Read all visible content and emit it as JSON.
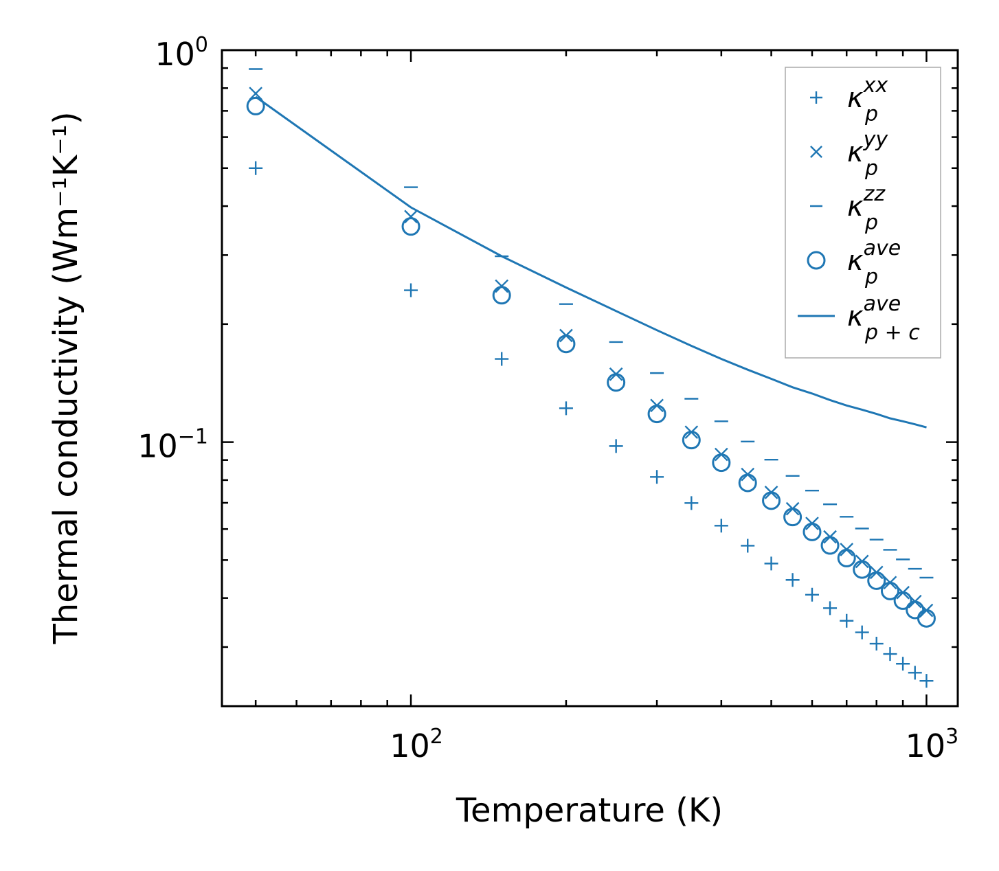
{
  "chart_data": {
    "type": "scatter",
    "title": "",
    "xlabel": "Temperature (K)",
    "ylabel": "Thermal conductivity (Wm⁻¹K⁻¹)",
    "xscale": "log",
    "yscale": "log",
    "xlim": [
      43,
      1150
    ],
    "ylim": [
      0.0212,
      1.0
    ],
    "x_ticks": [
      {
        "value": 100,
        "base": "10",
        "exp": "2"
      },
      {
        "value": 1000,
        "base": "10",
        "exp": "3"
      }
    ],
    "y_ticks": [
      {
        "value": 1.0,
        "base": "10",
        "exp": "0"
      },
      {
        "value": 0.1,
        "base": "10",
        "exp": "−1"
      }
    ],
    "color": "#1f77b4",
    "legend_position": "top-right",
    "x": [
      50,
      100,
      150,
      200,
      250,
      300,
      350,
      400,
      450,
      500,
      550,
      600,
      650,
      700,
      750,
      800,
      850,
      900,
      950,
      1000
    ],
    "series": [
      {
        "name": "κ_p^xx",
        "sym": "κ",
        "sub": "p",
        "sup": "xx",
        "marker": "plus",
        "values": [
          0.5,
          0.244,
          0.163,
          0.122,
          0.0977,
          0.0815,
          0.0699,
          0.0612,
          0.0544,
          0.049,
          0.0445,
          0.0408,
          0.0377,
          0.035,
          0.0327,
          0.0306,
          0.0288,
          0.0272,
          0.0258,
          0.0246
        ]
      },
      {
        "name": "κ_p^yy",
        "sym": "κ",
        "sub": "p",
        "sup": "yy",
        "marker": "x",
        "values": [
          0.775,
          0.376,
          0.25,
          0.187,
          0.149,
          0.124,
          0.106,
          0.093,
          0.0827,
          0.0744,
          0.0676,
          0.062,
          0.0573,
          0.0532,
          0.0496,
          0.0465,
          0.0438,
          0.0413,
          0.0392,
          0.0372
        ]
      },
      {
        "name": "κ_p^zz",
        "sym": "κ",
        "sub": "p",
        "sup": "zz",
        "marker": "hline",
        "values": [
          0.895,
          0.447,
          0.298,
          0.225,
          0.18,
          0.15,
          0.129,
          0.113,
          0.1003,
          0.0902,
          0.082,
          0.0752,
          0.0694,
          0.0645,
          0.0602,
          0.0564,
          0.0531,
          0.0502,
          0.0475,
          0.0451
        ]
      },
      {
        "name": "κ_p^ave",
        "sym": "κ",
        "sub": "p",
        "sup": "ave",
        "marker": "circle",
        "values": [
          0.72,
          0.355,
          0.237,
          0.178,
          0.142,
          0.118,
          0.1012,
          0.0886,
          0.0787,
          0.0709,
          0.0644,
          0.059,
          0.0545,
          0.0506,
          0.0473,
          0.0443,
          0.0417,
          0.0394,
          0.0373,
          0.0355
        ]
      },
      {
        "name": "κ_p+c^ave",
        "sym": "κ",
        "sub": "p + c",
        "sup": "ave",
        "marker": "line",
        "values": [
          0.76,
          0.397,
          0.298,
          0.248,
          0.216,
          0.193,
          0.176,
          0.163,
          0.153,
          0.145,
          0.138,
          0.133,
          0.128,
          0.124,
          0.121,
          0.118,
          0.115,
          0.113,
          0.111,
          0.109
        ]
      }
    ]
  }
}
